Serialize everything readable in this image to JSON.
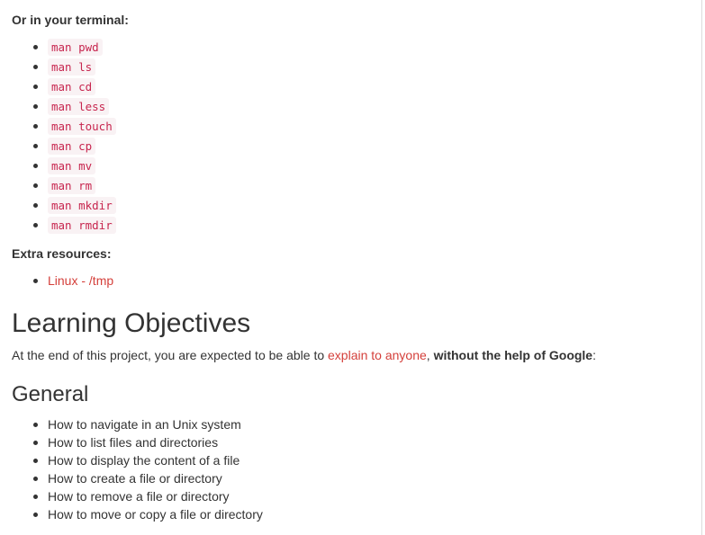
{
  "terminal_heading": "Or in your terminal:",
  "man_commands": [
    "man pwd",
    "man ls",
    "man cd",
    "man less",
    "man touch",
    "man cp",
    "man mv",
    "man rm",
    "man mkdir",
    "man rmdir"
  ],
  "extra_heading": "Extra resources:",
  "extra_resources": [
    "Linux - /tmp"
  ],
  "objectives": {
    "title": "Learning Objectives",
    "intro_prefix": "At the end of this project, you are expected to be able to ",
    "intro_link": "explain to anyone",
    "intro_comma": ", ",
    "intro_bold": "without the help of Google",
    "intro_suffix": ":"
  },
  "general": {
    "title": "General",
    "items": [
      "How to navigate in an Unix system",
      "How to list files and directories",
      "How to display the content of a file",
      "How to create a file or directory",
      "How to remove a file or directory",
      "How to move or copy a file or directory"
    ]
  },
  "colors": {
    "link": "#d43f3a",
    "code_text": "#c7254e",
    "code_bg": "#f9f2f4",
    "text": "#333333"
  }
}
